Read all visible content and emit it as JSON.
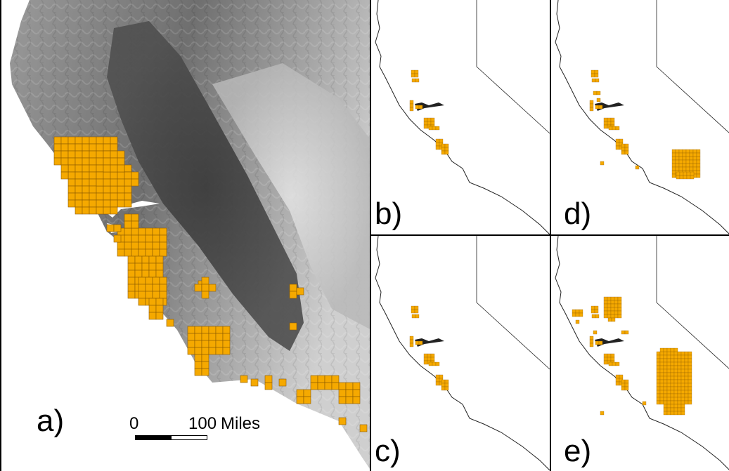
{
  "panels": {
    "a": {
      "label": "a)"
    },
    "b": {
      "label": "b)"
    },
    "c": {
      "label": "c)"
    },
    "d": {
      "label": "d)"
    },
    "e": {
      "label": "e)"
    }
  },
  "scale_bar": {
    "zero_label": "0",
    "max_label": "100",
    "unit_label": "Miles"
  },
  "colors": {
    "occurrence_cell": "#f5a900",
    "cell_grid": "#8a5a00",
    "terrain_dark": "#3e3e3e",
    "terrain_mid": "#7a7a7a",
    "terrain_light": "#d8d8d8",
    "outline": "#222222"
  }
}
